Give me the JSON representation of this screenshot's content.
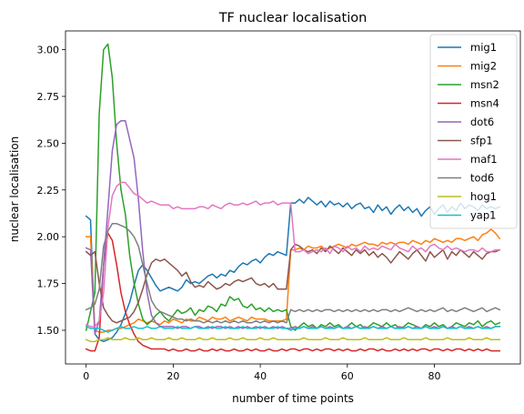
{
  "chart_data": {
    "type": "line",
    "title": "TF nuclear localisation",
    "xlabel": "number of time points",
    "ylabel": "nuclear localisation",
    "xlim": [
      -4.75,
      99.75
    ],
    "ylim": [
      1.32,
      3.1
    ],
    "xticks": [
      0,
      20,
      40,
      60,
      80
    ],
    "xtick_labels": [
      "0",
      "20",
      "40",
      "60",
      "80"
    ],
    "yticks": [
      1.5,
      1.75,
      2.0,
      2.25,
      2.5,
      2.75,
      3.0
    ],
    "ytick_labels": [
      "1.50",
      "1.75",
      "2.00",
      "2.25",
      "2.50",
      "2.75",
      "3.00"
    ],
    "grid": false,
    "legend_position": "top-right",
    "x": [
      0,
      1,
      2,
      3,
      4,
      5,
      6,
      7,
      8,
      9,
      10,
      11,
      12,
      13,
      14,
      15,
      16,
      17,
      18,
      19,
      20,
      21,
      22,
      23,
      24,
      25,
      26,
      27,
      28,
      29,
      30,
      31,
      32,
      33,
      34,
      35,
      36,
      37,
      38,
      39,
      40,
      41,
      42,
      43,
      44,
      45,
      46,
      47,
      48,
      49,
      50,
      51,
      52,
      53,
      54,
      55,
      56,
      57,
      58,
      59,
      60,
      61,
      62,
      63,
      64,
      65,
      66,
      67,
      68,
      69,
      70,
      71,
      72,
      73,
      74,
      75,
      76,
      77,
      78,
      79,
      80,
      81,
      82,
      83,
      84,
      85,
      86,
      87,
      88,
      89,
      90,
      91,
      92,
      93,
      94,
      95
    ],
    "series": [
      {
        "name": "mig1",
        "color": "#1f77b4",
        "values": [
          2.11,
          2.09,
          1.48,
          1.45,
          1.44,
          1.45,
          1.46,
          1.49,
          1.53,
          1.59,
          1.65,
          1.74,
          1.82,
          1.85,
          1.82,
          1.78,
          1.74,
          1.71,
          1.72,
          1.73,
          1.72,
          1.71,
          1.73,
          1.77,
          1.75,
          1.76,
          1.75,
          1.77,
          1.79,
          1.8,
          1.78,
          1.8,
          1.79,
          1.82,
          1.81,
          1.84,
          1.86,
          1.85,
          1.87,
          1.88,
          1.86,
          1.89,
          1.91,
          1.9,
          1.92,
          1.91,
          1.9,
          2.18,
          2.18,
          2.2,
          2.18,
          2.21,
          2.19,
          2.17,
          2.19,
          2.16,
          2.19,
          2.17,
          2.18,
          2.16,
          2.18,
          2.15,
          2.17,
          2.18,
          2.15,
          2.16,
          2.13,
          2.17,
          2.14,
          2.16,
          2.12,
          2.15,
          2.17,
          2.14,
          2.16,
          2.13,
          2.15,
          2.11,
          2.14,
          2.16,
          2.12,
          2.15,
          2.17,
          2.13,
          2.16,
          2.14,
          2.18,
          2.15,
          2.17,
          2.16,
          2.14,
          2.17,
          2.15,
          2.16,
          2.15,
          2.16
        ]
      },
      {
        "name": "mig2",
        "color": "#ff7f0e",
        "values": [
          2.0,
          2.0,
          1.5,
          1.49,
          1.49,
          1.5,
          1.5,
          1.51,
          1.51,
          1.52,
          1.53,
          1.54,
          1.56,
          1.55,
          1.54,
          1.55,
          1.54,
          1.53,
          1.55,
          1.54,
          1.56,
          1.55,
          1.54,
          1.56,
          1.55,
          1.55,
          1.57,
          1.56,
          1.55,
          1.57,
          1.56,
          1.56,
          1.57,
          1.55,
          1.56,
          1.57,
          1.56,
          1.55,
          1.57,
          1.56,
          1.56,
          1.56,
          1.55,
          1.55,
          1.55,
          1.55,
          1.56,
          1.93,
          1.93,
          1.94,
          1.93,
          1.95,
          1.94,
          1.94,
          1.95,
          1.93,
          1.94,
          1.95,
          1.96,
          1.95,
          1.94,
          1.96,
          1.95,
          1.96,
          1.97,
          1.96,
          1.96,
          1.95,
          1.97,
          1.96,
          1.97,
          1.96,
          1.97,
          1.97,
          1.96,
          1.98,
          1.97,
          1.96,
          1.98,
          1.97,
          1.99,
          1.98,
          1.97,
          1.98,
          1.97,
          1.99,
          1.99,
          1.98,
          1.99,
          2.0,
          1.98,
          2.01,
          2.02,
          2.04,
          2.02,
          1.99
        ]
      },
      {
        "name": "msn2",
        "color": "#2ca02c",
        "values": [
          1.5,
          1.6,
          1.7,
          2.66,
          3.0,
          3.03,
          2.85,
          2.5,
          2.25,
          2.12,
          1.9,
          1.75,
          1.64,
          1.56,
          1.53,
          1.55,
          1.58,
          1.6,
          1.57,
          1.55,
          1.58,
          1.61,
          1.59,
          1.6,
          1.62,
          1.58,
          1.61,
          1.6,
          1.63,
          1.62,
          1.6,
          1.64,
          1.63,
          1.68,
          1.66,
          1.67,
          1.63,
          1.62,
          1.64,
          1.61,
          1.62,
          1.6,
          1.62,
          1.6,
          1.61,
          1.6,
          1.61,
          1.52,
          1.5,
          1.52,
          1.54,
          1.52,
          1.53,
          1.51,
          1.53,
          1.52,
          1.54,
          1.52,
          1.53,
          1.51,
          1.52,
          1.54,
          1.52,
          1.53,
          1.51,
          1.52,
          1.54,
          1.53,
          1.52,
          1.54,
          1.52,
          1.53,
          1.51,
          1.52,
          1.54,
          1.53,
          1.52,
          1.51,
          1.53,
          1.52,
          1.54,
          1.52,
          1.53,
          1.51,
          1.52,
          1.54,
          1.53,
          1.52,
          1.54,
          1.53,
          1.55,
          1.52,
          1.54,
          1.55,
          1.53,
          1.54
        ]
      },
      {
        "name": "msn4",
        "color": "#d62728",
        "values": [
          1.4,
          1.39,
          1.39,
          1.46,
          1.85,
          2.02,
          1.98,
          1.85,
          1.7,
          1.6,
          1.53,
          1.48,
          1.44,
          1.42,
          1.41,
          1.4,
          1.4,
          1.4,
          1.4,
          1.39,
          1.4,
          1.39,
          1.39,
          1.4,
          1.39,
          1.39,
          1.4,
          1.39,
          1.39,
          1.4,
          1.39,
          1.4,
          1.39,
          1.39,
          1.4,
          1.39,
          1.39,
          1.4,
          1.39,
          1.4,
          1.39,
          1.39,
          1.4,
          1.39,
          1.39,
          1.4,
          1.39,
          1.4,
          1.4,
          1.39,
          1.4,
          1.4,
          1.39,
          1.4,
          1.39,
          1.4,
          1.4,
          1.39,
          1.4,
          1.39,
          1.4,
          1.39,
          1.39,
          1.4,
          1.39,
          1.4,
          1.4,
          1.39,
          1.4,
          1.39,
          1.39,
          1.4,
          1.39,
          1.4,
          1.39,
          1.4,
          1.39,
          1.4,
          1.4,
          1.39,
          1.4,
          1.4,
          1.39,
          1.4,
          1.39,
          1.4,
          1.4,
          1.39,
          1.4,
          1.39,
          1.4,
          1.39,
          1.4,
          1.39,
          1.39,
          1.39
        ]
      },
      {
        "name": "dot6",
        "color": "#9467bd",
        "values": [
          1.94,
          1.93,
          1.48,
          1.55,
          1.85,
          2.15,
          2.46,
          2.6,
          2.62,
          2.62,
          2.52,
          2.42,
          2.2,
          1.92,
          1.7,
          1.58,
          1.54,
          1.52,
          1.52,
          1.52,
          1.52,
          1.51,
          1.52,
          1.52,
          1.51,
          1.52,
          1.52,
          1.51,
          1.52,
          1.51,
          1.52,
          1.52,
          1.51,
          1.52,
          1.51,
          1.52,
          1.51,
          1.52,
          1.51,
          1.52,
          1.51,
          1.52,
          1.51,
          1.52,
          1.51,
          1.52,
          1.51,
          1.51,
          1.52,
          1.51,
          1.52,
          1.51,
          1.52,
          1.51,
          1.52,
          1.51,
          1.52,
          1.51,
          1.52,
          1.51,
          1.52,
          1.51,
          1.52,
          1.51,
          1.52,
          1.51,
          1.52,
          1.51,
          1.52,
          1.51,
          1.52,
          1.51,
          1.52,
          1.51,
          1.52,
          1.51,
          1.52,
          1.51,
          1.52,
          1.51,
          1.52,
          1.51,
          1.52,
          1.51,
          1.52,
          1.51,
          1.52,
          1.51,
          1.52,
          1.51,
          1.52,
          1.51,
          1.52,
          1.51,
          1.52,
          1.52
        ]
      },
      {
        "name": "sfp1",
        "color": "#8c564b",
        "values": [
          1.92,
          1.9,
          1.92,
          1.75,
          1.62,
          1.58,
          1.55,
          1.54,
          1.55,
          1.56,
          1.57,
          1.6,
          1.65,
          1.72,
          1.8,
          1.86,
          1.88,
          1.87,
          1.88,
          1.86,
          1.84,
          1.82,
          1.79,
          1.81,
          1.76,
          1.73,
          1.74,
          1.73,
          1.76,
          1.74,
          1.72,
          1.73,
          1.75,
          1.74,
          1.76,
          1.77,
          1.76,
          1.77,
          1.78,
          1.75,
          1.74,
          1.75,
          1.73,
          1.75,
          1.72,
          1.72,
          1.72,
          1.93,
          1.96,
          1.95,
          1.93,
          1.92,
          1.93,
          1.91,
          1.94,
          1.92,
          1.95,
          1.93,
          1.91,
          1.94,
          1.92,
          1.9,
          1.93,
          1.91,
          1.93,
          1.9,
          1.92,
          1.89,
          1.91,
          1.89,
          1.86,
          1.89,
          1.92,
          1.9,
          1.88,
          1.91,
          1.93,
          1.9,
          1.87,
          1.92,
          1.89,
          1.91,
          1.93,
          1.88,
          1.92,
          1.9,
          1.93,
          1.91,
          1.89,
          1.92,
          1.9,
          1.88,
          1.91,
          1.92,
          1.92,
          1.93
        ]
      },
      {
        "name": "maf1",
        "color": "#e377c2",
        "values": [
          1.53,
          1.52,
          1.52,
          1.55,
          1.7,
          2.05,
          2.22,
          2.27,
          2.29,
          2.29,
          2.26,
          2.23,
          2.22,
          2.2,
          2.18,
          2.19,
          2.18,
          2.17,
          2.17,
          2.17,
          2.15,
          2.16,
          2.15,
          2.15,
          2.15,
          2.15,
          2.16,
          2.16,
          2.15,
          2.17,
          2.16,
          2.15,
          2.17,
          2.18,
          2.17,
          2.17,
          2.18,
          2.17,
          2.18,
          2.19,
          2.17,
          2.18,
          2.18,
          2.19,
          2.17,
          2.18,
          2.18,
          2.18,
          1.92,
          1.92,
          1.93,
          1.91,
          1.92,
          1.93,
          1.92,
          1.94,
          1.91,
          1.95,
          1.94,
          1.92,
          1.95,
          1.93,
          1.94,
          1.92,
          1.95,
          1.93,
          1.94,
          1.93,
          1.95,
          1.94,
          1.93,
          1.96,
          1.94,
          1.93,
          1.92,
          1.95,
          1.93,
          1.94,
          1.92,
          1.95,
          1.96,
          1.94,
          1.93,
          1.95,
          1.93,
          1.94,
          1.93,
          1.92,
          1.93,
          1.93,
          1.92,
          1.94,
          1.92,
          1.92,
          1.93,
          1.93
        ]
      },
      {
        "name": "tod6",
        "color": "#7f7f7f",
        "values": [
          1.61,
          1.62,
          1.64,
          1.72,
          1.95,
          2.03,
          2.07,
          2.07,
          2.06,
          2.05,
          2.03,
          2.0,
          1.95,
          1.85,
          1.75,
          1.66,
          1.62,
          1.6,
          1.59,
          1.58,
          1.57,
          1.56,
          1.56,
          1.55,
          1.56,
          1.55,
          1.55,
          1.54,
          1.55,
          1.54,
          1.55,
          1.54,
          1.55,
          1.54,
          1.55,
          1.54,
          1.55,
          1.54,
          1.54,
          1.55,
          1.54,
          1.55,
          1.54,
          1.55,
          1.54,
          1.55,
          1.54,
          1.61,
          1.6,
          1.61,
          1.6,
          1.61,
          1.6,
          1.61,
          1.6,
          1.61,
          1.61,
          1.6,
          1.61,
          1.6,
          1.61,
          1.6,
          1.61,
          1.6,
          1.61,
          1.6,
          1.61,
          1.6,
          1.61,
          1.61,
          1.6,
          1.61,
          1.6,
          1.61,
          1.62,
          1.61,
          1.6,
          1.61,
          1.6,
          1.61,
          1.6,
          1.61,
          1.62,
          1.6,
          1.61,
          1.6,
          1.61,
          1.62,
          1.61,
          1.6,
          1.61,
          1.62,
          1.6,
          1.61,
          1.62,
          1.61
        ]
      },
      {
        "name": "hog1",
        "color": "#bcbd22",
        "values": [
          1.45,
          1.44,
          1.44,
          1.45,
          1.45,
          1.46,
          1.45,
          1.45,
          1.45,
          1.46,
          1.45,
          1.45,
          1.46,
          1.45,
          1.45,
          1.46,
          1.45,
          1.45,
          1.45,
          1.46,
          1.45,
          1.45,
          1.46,
          1.45,
          1.45,
          1.45,
          1.46,
          1.45,
          1.45,
          1.46,
          1.45,
          1.45,
          1.45,
          1.46,
          1.45,
          1.45,
          1.46,
          1.45,
          1.45,
          1.45,
          1.46,
          1.45,
          1.45,
          1.46,
          1.45,
          1.45,
          1.45,
          1.45,
          1.45,
          1.45,
          1.46,
          1.45,
          1.45,
          1.45,
          1.45,
          1.46,
          1.45,
          1.45,
          1.45,
          1.46,
          1.45,
          1.45,
          1.45,
          1.45,
          1.46,
          1.45,
          1.45,
          1.45,
          1.45,
          1.46,
          1.45,
          1.45,
          1.45,
          1.46,
          1.45,
          1.45,
          1.45,
          1.45,
          1.46,
          1.45,
          1.45,
          1.45,
          1.45,
          1.46,
          1.45,
          1.45,
          1.45,
          1.45,
          1.46,
          1.45,
          1.45,
          1.45,
          1.46,
          1.45,
          1.45,
          1.45
        ]
      },
      {
        "name": "yap1",
        "color": "#17becf",
        "values": [
          1.52,
          1.51,
          1.51,
          1.51,
          1.5,
          1.49,
          1.5,
          1.51,
          1.52,
          1.51,
          1.51,
          1.52,
          1.51,
          1.51,
          1.52,
          1.51,
          1.51,
          1.52,
          1.51,
          1.51,
          1.51,
          1.52,
          1.51,
          1.51,
          1.51,
          1.52,
          1.51,
          1.51,
          1.51,
          1.52,
          1.51,
          1.51,
          1.52,
          1.51,
          1.51,
          1.51,
          1.52,
          1.51,
          1.51,
          1.51,
          1.52,
          1.51,
          1.51,
          1.51,
          1.52,
          1.51,
          1.51,
          1.5,
          1.51,
          1.51,
          1.52,
          1.51,
          1.51,
          1.51,
          1.52,
          1.51,
          1.51,
          1.51,
          1.52,
          1.51,
          1.51,
          1.51,
          1.52,
          1.51,
          1.51,
          1.51,
          1.52,
          1.51,
          1.51,
          1.51,
          1.52,
          1.51,
          1.51,
          1.51,
          1.52,
          1.51,
          1.51,
          1.51,
          1.52,
          1.51,
          1.51,
          1.51,
          1.52,
          1.51,
          1.51,
          1.51,
          1.52,
          1.51,
          1.51,
          1.51,
          1.52,
          1.51,
          1.51,
          1.51,
          1.52,
          1.52
        ]
      }
    ]
  }
}
